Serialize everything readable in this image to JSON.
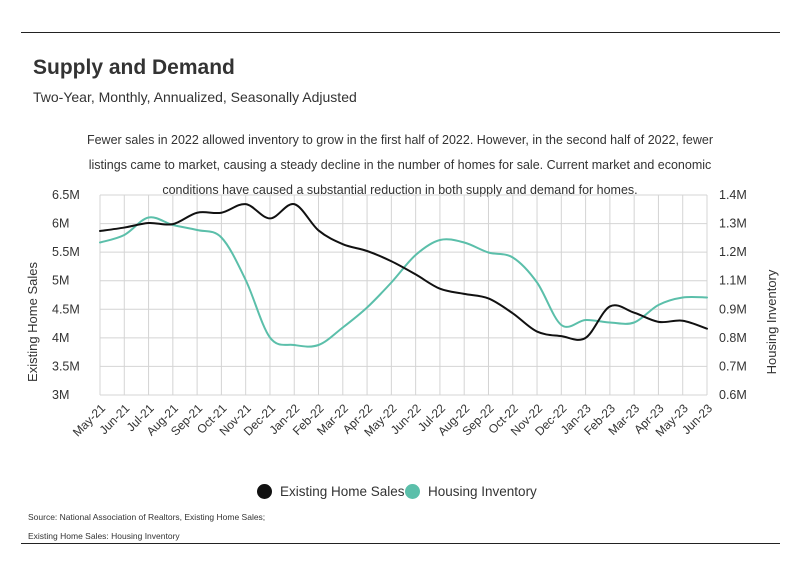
{
  "header": {
    "title": "Supply and Demand",
    "subtitle": "Two-Year, Monthly, Annualized, Seasonally Adjusted",
    "description": [
      "Fewer sales in 2022 allowed inventory to grow in the first half of 2022. However, in the second half of 2022, fewer",
      "listings came to market, causing a steady decline in the number of homes for sale. Current market and economic",
      "conditions have caused a substantial reduction in both supply and demand for homes."
    ]
  },
  "source": {
    "line1": "Source:  National Association of Realtors, Existing Home Sales;",
    "line2": "Existing Home Sales: Housing Inventory"
  },
  "colors": {
    "sales": "#111111",
    "inventory": "#5bbfaa",
    "grid": "#d4d4d4"
  },
  "chart_data": {
    "type": "line",
    "x": [
      "May-21",
      "Jun-21",
      "Jul-21",
      "Aug-21",
      "Sep-21",
      "Oct-21",
      "Nov-21",
      "Dec-21",
      "Jan-22",
      "Feb-22",
      "Mar-22",
      "Apr-22",
      "May-22",
      "Jun-22",
      "Jul-22",
      "Aug-22",
      "Sep-22",
      "Oct-22",
      "Nov-22",
      "Dec-22",
      "Jan-23",
      "Feb-23",
      "Mar-23",
      "Apr-23",
      "May-23",
      "Jun-23"
    ],
    "ylabel_left": "Existing Home Sales",
    "ylabel_right": "Housing Inventory",
    "yticks_left": [
      "6.5M",
      "6M",
      "5.5M",
      "5M",
      "4.5M",
      "4M",
      "3.5M",
      "3M"
    ],
    "yticks_right": [
      "1.4M",
      "1.3M",
      "1.2M",
      "1.1M",
      "0.9M",
      "0.8M",
      "0.7M",
      "0.6M"
    ],
    "ylim_left": [
      3000000,
      6500000
    ],
    "ylim_right": [
      600000,
      1400000
    ],
    "grid": true,
    "legend_position": "bottom",
    "series": [
      {
        "name": "Existing Home Sales",
        "axis": "left",
        "values": [
          5870000,
          5930000,
          6010000,
          5990000,
          6190000,
          6190000,
          6340000,
          6090000,
          6340000,
          5880000,
          5640000,
          5520000,
          5340000,
          5110000,
          4860000,
          4770000,
          4690000,
          4430000,
          4110000,
          4030000,
          4000000,
          4550000,
          4440000,
          4280000,
          4300000,
          4160000
        ]
      },
      {
        "name": "Housing Inventory",
        "axis": "right",
        "values": [
          1210000,
          1240000,
          1310000,
          1280000,
          1260000,
          1230000,
          1060000,
          830000,
          800000,
          800000,
          870000,
          950000,
          1050000,
          1160000,
          1220000,
          1210000,
          1170000,
          1150000,
          1050000,
          880000,
          900000,
          890000,
          890000,
          960000,
          990000,
          990000
        ]
      }
    ]
  }
}
